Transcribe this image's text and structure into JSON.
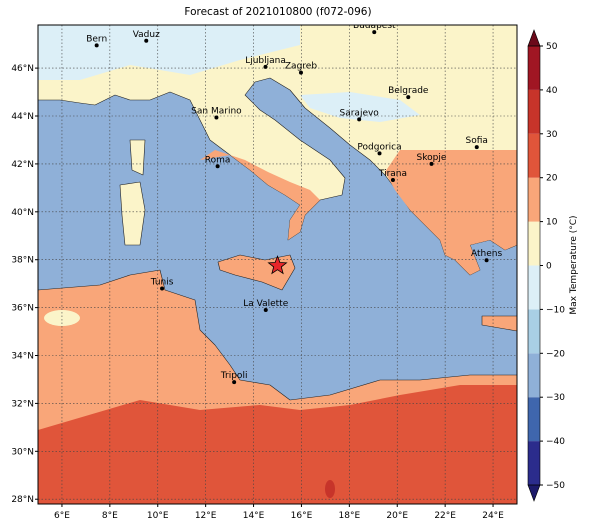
{
  "title": "Forecast of 2021010800 (f072-096)",
  "map": {
    "lon_range": [
      5,
      25
    ],
    "lat_range": [
      27.8,
      47.8
    ],
    "lon_ticks": [
      {
        "value": 6,
        "label": "6°E"
      },
      {
        "value": 8,
        "label": "8°E"
      },
      {
        "value": 10,
        "label": "10°E"
      },
      {
        "value": 12,
        "label": "12°E"
      },
      {
        "value": 14,
        "label": "14°E"
      },
      {
        "value": 16,
        "label": "16°E"
      },
      {
        "value": 18,
        "label": "18°E"
      },
      {
        "value": 20,
        "label": "20°E"
      },
      {
        "value": 22,
        "label": "22°E"
      },
      {
        "value": 24,
        "label": "24°E"
      }
    ],
    "lat_ticks": [
      {
        "value": 28,
        "label": "28°N"
      },
      {
        "value": 30,
        "label": "30°N"
      },
      {
        "value": 32,
        "label": "32°N"
      },
      {
        "value": 34,
        "label": "34°N"
      },
      {
        "value": 36,
        "label": "36°N"
      },
      {
        "value": 38,
        "label": "38°N"
      },
      {
        "value": 40,
        "label": "40°N"
      },
      {
        "value": 42,
        "label": "42°N"
      },
      {
        "value": 44,
        "label": "44°N"
      },
      {
        "value": 46,
        "label": "46°N"
      }
    ],
    "cities": [
      {
        "name": "Bern",
        "lon": 7.45,
        "lat": 46.95
      },
      {
        "name": "Vaduz",
        "lon": 9.52,
        "lat": 47.14
      },
      {
        "name": "Budapest",
        "lon": 19.04,
        "lat": 47.5
      },
      {
        "name": "Ljubljana",
        "lon": 14.5,
        "lat": 46.05
      },
      {
        "name": "Zagreb",
        "lon": 15.98,
        "lat": 45.81
      },
      {
        "name": "Belgrade",
        "lon": 20.46,
        "lat": 44.79
      },
      {
        "name": "San Marino",
        "lon": 12.45,
        "lat": 43.94
      },
      {
        "name": "Sarajevo",
        "lon": 18.41,
        "lat": 43.86
      },
      {
        "name": "Sofia",
        "lon": 23.32,
        "lat": 42.7
      },
      {
        "name": "Podgorica",
        "lon": 19.26,
        "lat": 42.44
      },
      {
        "name": "Skopje",
        "lon": 21.43,
        "lat": 42.0
      },
      {
        "name": "Roma",
        "lon": 12.5,
        "lat": 41.9
      },
      {
        "name": "Tirana",
        "lon": 19.82,
        "lat": 41.33
      },
      {
        "name": "Athens",
        "lon": 23.73,
        "lat": 37.98
      },
      {
        "name": "Tunis",
        "lon": 10.18,
        "lat": 36.8
      },
      {
        "name": "La Valette",
        "lon": 14.51,
        "lat": 35.9
      },
      {
        "name": "Tripoli",
        "lon": 13.19,
        "lat": 32.89
      }
    ],
    "marker": {
      "lon": 15.0,
      "lat": 37.75,
      "color": "#e8262a"
    }
  },
  "colorbar": {
    "label": "Max Temperature (°C)",
    "range": [
      -50,
      50
    ],
    "ticks": [
      {
        "value": -50,
        "label": "−50"
      },
      {
        "value": -40,
        "label": "−40"
      },
      {
        "value": -30,
        "label": "−30"
      },
      {
        "value": -20,
        "label": "−20"
      },
      {
        "value": -10,
        "label": "−10"
      },
      0,
      10,
      20,
      30,
      40,
      50
    ],
    "colors": [
      "#2b2c8c",
      "#3f66ad",
      "#8fb0d8",
      "#a9cfe5",
      "#dceff7",
      "#fbf4c9",
      "#f9a679",
      "#e0553a",
      "#c7342a",
      "#a01623"
    ],
    "under_color": "#1c1a6a",
    "over_color": "#6b0a1a"
  }
}
